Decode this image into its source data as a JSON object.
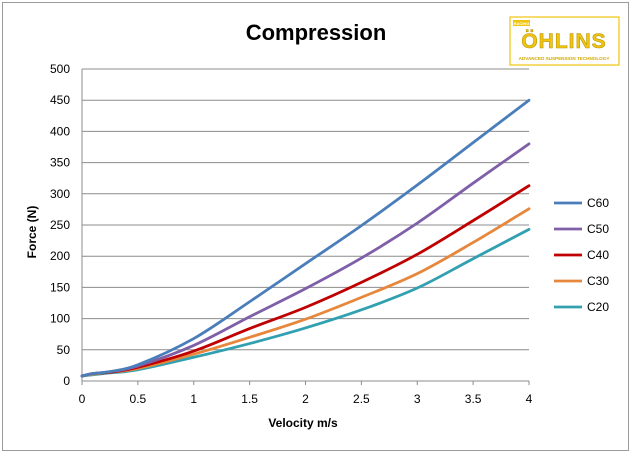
{
  "chart_data": {
    "type": "line",
    "title": "Compression",
    "xlabel": "Velocity m/s",
    "ylabel": "Force (N)",
    "xlim": [
      0,
      4
    ],
    "ylim": [
      0,
      500
    ],
    "x_ticks": [
      "0",
      "0.5",
      "1",
      "1.5",
      "2",
      "2.5",
      "3",
      "3.5",
      "4"
    ],
    "y_ticks": [
      "0",
      "50",
      "100",
      "150",
      "200",
      "250",
      "300",
      "350",
      "400",
      "450",
      "500"
    ],
    "grid": "horizontal",
    "legend_position": "right",
    "x": [
      0,
      0.1,
      0.25,
      0.5,
      1,
      1.5,
      2,
      2.5,
      3,
      3.5,
      4
    ],
    "series": [
      {
        "name": "C60",
        "color": "#4a7ebb",
        "values": [
          8,
          12,
          15,
          26,
          68,
          127,
          188,
          249,
          314,
          382,
          450
        ]
      },
      {
        "name": "C50",
        "color": "#7f5fa8",
        "values": [
          8,
          12,
          15,
          24,
          57,
          103,
          148,
          197,
          253,
          317,
          380
        ]
      },
      {
        "name": "C40",
        "color": "#c00000",
        "values": [
          8,
          12,
          14,
          22,
          48,
          84,
          118,
          158,
          203,
          257,
          313
        ]
      },
      {
        "name": "C30",
        "color": "#e6873c",
        "values": [
          8,
          11,
          14,
          20,
          43,
          70,
          99,
          134,
          172,
          222,
          276
        ]
      },
      {
        "name": "C20",
        "color": "#31a0b0",
        "values": [
          8,
          10,
          13,
          18,
          38,
          60,
          85,
          114,
          149,
          196,
          243
        ]
      }
    ]
  },
  "logo": {
    "brand": "ÖHLINS",
    "tagline": "ADVANCED SUSPENSION TECHNOLOGY",
    "badge": "RACING",
    "primary_color": "#f1c50f"
  }
}
